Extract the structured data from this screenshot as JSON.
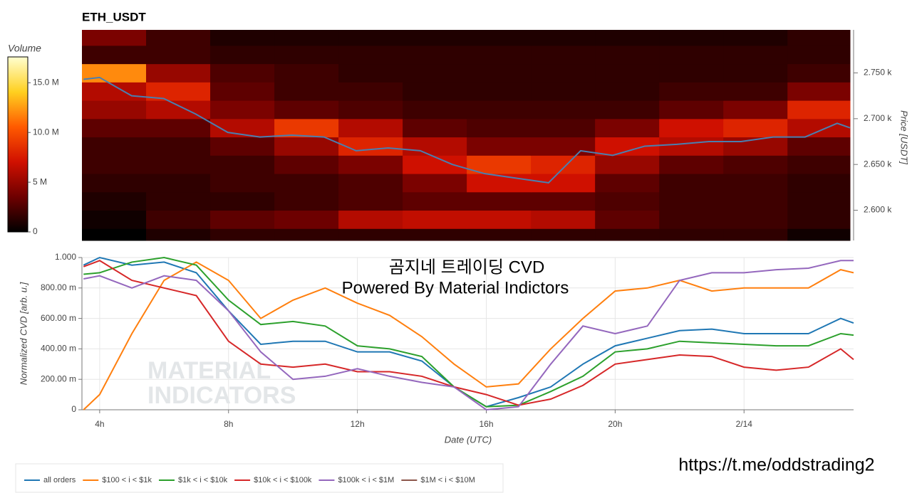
{
  "chart_data": [
    {
      "type": "heatmap",
      "title": "ETH_USDT",
      "y_label": "Price [USDT]",
      "colorbar_label": "Volume",
      "xlim": [
        3.45,
        27.4
      ],
      "ylim": [
        2567,
        2797
      ],
      "yticks": [
        {
          "value": 2600,
          "label": "2.600 k"
        },
        {
          "value": 2650,
          "label": "2.650 k"
        },
        {
          "value": 2700,
          "label": "2.700 k"
        },
        {
          "value": 2750,
          "label": "2.750 k"
        }
      ],
      "zlim": [
        0,
        17.6
      ],
      "zticks": [
        0,
        {
          "value": 5,
          "label": "5 M"
        },
        {
          "value": 10,
          "label": "10.0 M"
        },
        {
          "value": 15,
          "label": "15.0 M"
        }
      ],
      "colormap": [
        "#000000",
        "#6e0000",
        "#d01000",
        "#ff5a00",
        "#ffd020",
        "#ffffd0"
      ],
      "x_bins": [
        3.45,
        5.45,
        7.45,
        9.45,
        11.45,
        13.45,
        15.45,
        17.45,
        19.45,
        21.45,
        23.45,
        25.45,
        27.4
      ],
      "y_bins": [
        2567,
        2580,
        2600,
        2620,
        2640,
        2660,
        2680,
        2700,
        2720,
        2740,
        2760,
        2780,
        2797
      ],
      "z": [
        [
          0,
          1,
          1.5,
          1.5,
          1.5,
          1.5,
          1.5,
          1.5,
          1.5,
          1.5,
          1.5,
          0.5
        ],
        [
          0.5,
          2,
          3,
          3.5,
          6,
          6.5,
          6.5,
          6,
          3,
          2,
          2,
          1.5
        ],
        [
          1,
          1.5,
          1.5,
          2,
          2.5,
          3,
          3,
          3,
          2.5,
          2,
          2,
          1.5
        ],
        [
          1.5,
          1.5,
          2,
          2,
          2.5,
          4,
          7,
          7,
          3,
          2,
          2,
          1.5
        ],
        [
          2,
          2,
          2,
          3,
          4,
          7,
          9,
          8,
          5,
          3,
          2.5,
          2
        ],
        [
          2,
          2,
          3,
          5,
          8,
          6,
          4,
          4,
          7,
          6,
          5,
          3
        ],
        [
          3,
          3,
          6,
          9,
          6,
          3,
          2.5,
          2.5,
          4,
          7,
          8,
          6
        ],
        [
          5,
          6,
          4,
          3,
          2.5,
          2,
          2,
          2,
          2,
          3,
          4,
          8
        ],
        [
          6,
          8,
          3,
          2,
          2,
          1.5,
          1.5,
          1.5,
          1.5,
          2,
          2,
          4
        ],
        [
          12,
          5,
          2.5,
          2,
          1.5,
          1.5,
          1.5,
          1.5,
          1.5,
          1.5,
          1.5,
          2
        ],
        [
          2,
          2,
          1.5,
          1.5,
          1.5,
          1.5,
          1.5,
          1.5,
          1.5,
          1.5,
          1.5,
          1.5
        ],
        [
          4,
          2,
          1,
          1,
          1,
          1,
          1,
          1,
          1,
          1,
          1,
          1.5
        ]
      ],
      "price": {
        "color": "#4a7fb0",
        "x": [
          3.5,
          4,
          5,
          6,
          7,
          8,
          9,
          10,
          11,
          12,
          13,
          14,
          15,
          16,
          17,
          18,
          19,
          20,
          21,
          22,
          23,
          24,
          25,
          26,
          27,
          27.4
        ],
        "values": [
          2743,
          2745,
          2725,
          2722,
          2705,
          2685,
          2680,
          2682,
          2680,
          2665,
          2668,
          2665,
          2650,
          2640,
          2635,
          2630,
          2665,
          2660,
          2670,
          2672,
          2675,
          2675,
          2680,
          2680,
          2695,
          2690
        ]
      }
    },
    {
      "type": "line",
      "x_label": "Date (UTC)",
      "y_label": "Normalized CVD [arb. u.]",
      "annotations": [
        "곰지네 트레이딩 CVD",
        "Powered By Material Indictors"
      ],
      "watermark": [
        "MATERIAL",
        "INDICATORS"
      ],
      "xlim": [
        3.45,
        27.4
      ],
      "ylim": [
        0,
        1
      ],
      "xticks": [
        {
          "value": 4,
          "label": "4h"
        },
        {
          "value": 8,
          "label": "8h"
        },
        {
          "value": 12,
          "label": "12h"
        },
        {
          "value": 16,
          "label": "16h"
        },
        {
          "value": 20,
          "label": "20h"
        },
        {
          "value": 24,
          "label": "2/14"
        }
      ],
      "yticks": [
        0,
        {
          "value": 0.2,
          "label": "200.00 m"
        },
        {
          "value": 0.4,
          "label": "400.00 m"
        },
        {
          "value": 0.6,
          "label": "600.00 m"
        },
        {
          "value": 0.8,
          "label": "800.00 m"
        },
        {
          "value": 1,
          "label": "1.000"
        }
      ],
      "grid": true,
      "x": [
        3.5,
        4,
        5,
        6,
        7,
        8,
        9,
        10,
        11,
        12,
        13,
        14,
        15,
        16,
        17,
        18,
        19,
        20,
        21,
        22,
        23,
        24,
        25,
        26,
        27,
        27.4
      ],
      "series": [
        {
          "name": "all orders",
          "color": "#1f77b4",
          "values": [
            0.95,
            1.0,
            0.95,
            0.97,
            0.9,
            0.65,
            0.43,
            0.45,
            0.45,
            0.38,
            0.38,
            0.32,
            0.15,
            0.02,
            0.08,
            0.15,
            0.3,
            0.42,
            0.47,
            0.52,
            0.53,
            0.5,
            0.5,
            0.5,
            0.6,
            0.57
          ]
        },
        {
          "name": "$100 < i < $1k",
          "color": "#ff7f0e",
          "values": [
            0.0,
            0.1,
            0.5,
            0.85,
            0.97,
            0.85,
            0.6,
            0.72,
            0.8,
            0.7,
            0.62,
            0.48,
            0.3,
            0.15,
            0.17,
            0.4,
            0.6,
            0.78,
            0.8,
            0.85,
            0.78,
            0.8,
            0.8,
            0.8,
            0.92,
            0.9
          ]
        },
        {
          "name": "$1k < i < $10k",
          "color": "#2ca02c",
          "values": [
            0.89,
            0.9,
            0.97,
            1.0,
            0.95,
            0.72,
            0.56,
            0.58,
            0.55,
            0.42,
            0.4,
            0.35,
            0.15,
            0.02,
            0.03,
            0.12,
            0.22,
            0.38,
            0.4,
            0.45,
            0.44,
            0.43,
            0.42,
            0.42,
            0.5,
            0.49
          ]
        },
        {
          "name": "$10k < i < $100k",
          "color": "#d62728",
          "values": [
            0.94,
            0.98,
            0.85,
            0.8,
            0.75,
            0.45,
            0.3,
            0.28,
            0.3,
            0.25,
            0.25,
            0.22,
            0.15,
            0.1,
            0.03,
            0.07,
            0.16,
            0.3,
            0.33,
            0.36,
            0.35,
            0.28,
            0.26,
            0.28,
            0.4,
            0.33
          ]
        },
        {
          "name": "$100k < i < $1M",
          "color": "#9467bd",
          "values": [
            0.86,
            0.88,
            0.8,
            0.88,
            0.85,
            0.65,
            0.38,
            0.2,
            0.22,
            0.27,
            0.22,
            0.18,
            0.15,
            0.0,
            0.02,
            0.3,
            0.55,
            0.5,
            0.55,
            0.85,
            0.9,
            0.9,
            0.92,
            0.93,
            0.98,
            0.98
          ]
        },
        {
          "name": "$1M < i < $10M",
          "color": "#8c564b",
          "values": [
            null,
            null,
            null,
            null,
            null,
            null,
            null,
            null,
            null,
            null,
            null,
            null,
            null,
            null,
            null,
            null,
            null,
            null,
            null,
            null,
            null,
            null,
            null,
            null,
            null,
            null
          ]
        }
      ]
    },
    {
      "type": "text",
      "url": "https://t.me/oddstrading2"
    }
  ]
}
